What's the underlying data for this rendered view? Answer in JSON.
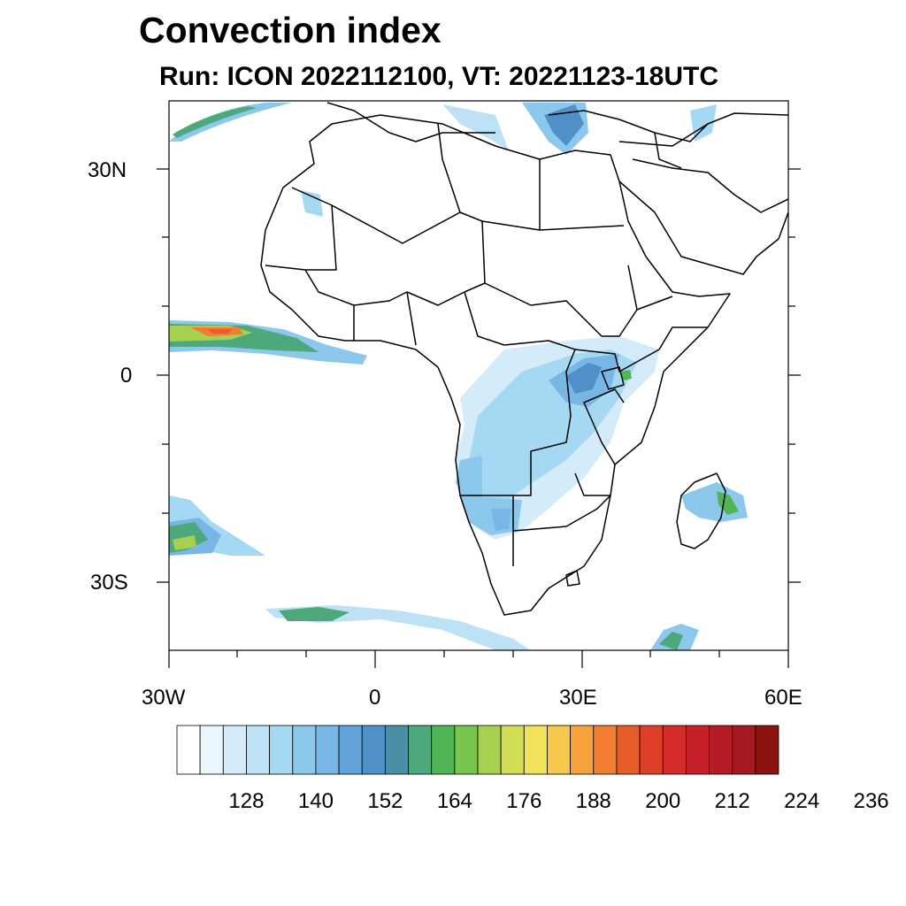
{
  "title": "Convection index",
  "subtitle": "Run: ICON 2022112100,  VT: 20221123-18UTC",
  "axes": {
    "lat_labels": [
      "30N",
      "0",
      "30S"
    ],
    "lon_labels": [
      "30W",
      "0",
      "30E",
      "60E"
    ]
  },
  "colorbar": {
    "labels": [
      "128",
      "140",
      "152",
      "164",
      "176",
      "188",
      "200",
      "212",
      "224",
      "236"
    ],
    "colors": [
      "#ffffff",
      "#eaf5fc",
      "#d4ecf9",
      "#bde2f6",
      "#a5d8f3",
      "#8cc7ec",
      "#77b6e5",
      "#62a3d9",
      "#4f90c9",
      "#4b8fa6",
      "#4da87c",
      "#50b655",
      "#78c44f",
      "#a8d050",
      "#d0dd55",
      "#f0e35a",
      "#f8c84b",
      "#f8a23e",
      "#f27c32",
      "#e85b2b",
      "#e03e29",
      "#d62b2b",
      "#c62029",
      "#b51c26",
      "#a51a22",
      "#8b1410"
    ]
  }
}
